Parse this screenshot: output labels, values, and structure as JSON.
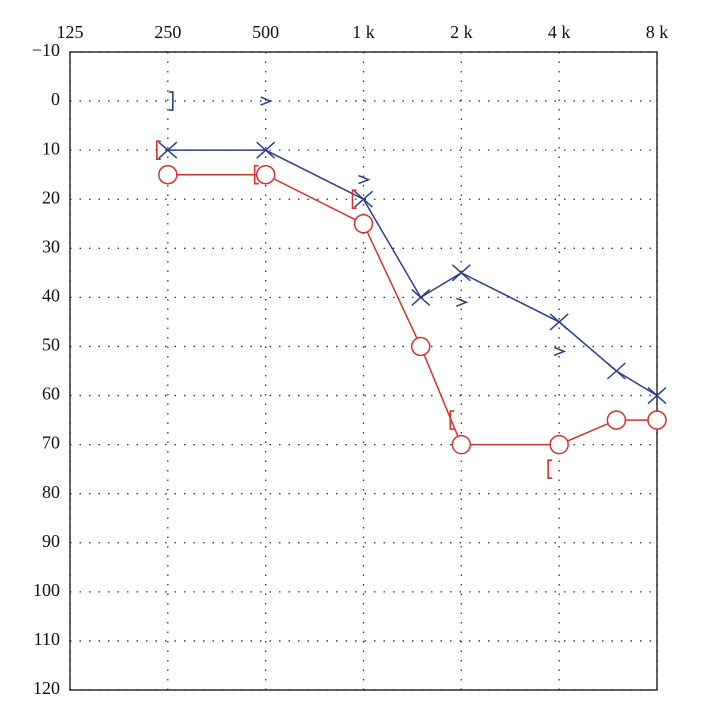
{
  "chart_data": {
    "type": "line",
    "xscale": "log",
    "y_reversed": true,
    "grid": true,
    "xlim": [
      125,
      8000
    ],
    "xticks": [
      125,
      250,
      500,
      {
        "value": 1000,
        "label": "1 k"
      },
      {
        "value": 2000,
        "label": "2 k"
      },
      {
        "value": 4000,
        "label": "4 k"
      },
      {
        "value": 8000,
        "label": "8 k"
      }
    ],
    "ylim": [
      -10,
      120
    ],
    "yticks": [
      {
        "value": -10,
        "label": "−10"
      },
      0,
      10,
      20,
      30,
      40,
      50,
      60,
      70,
      80,
      90,
      100,
      110,
      120
    ],
    "series": [
      {
        "color": "#2b3f8c",
        "marker": "cross",
        "line": true,
        "x": [
          250,
          500,
          1000,
          1500,
          2000,
          4000,
          6000,
          8000
        ],
        "values": [
          10,
          10,
          20,
          40,
          35,
          45,
          55,
          60
        ]
      },
      {
        "color": "#d0342c",
        "marker": "circle",
        "line": true,
        "x": [
          250,
          500,
          1000,
          1500,
          2000,
          4000,
          6000,
          8000
        ],
        "values": [
          15,
          15,
          25,
          50,
          70,
          70,
          65,
          65
        ]
      },
      {
        "color": "#d0342c",
        "marker": "bracket-left",
        "line": false,
        "x": [
          250,
          500,
          1000,
          2000,
          4000
        ],
        "values": [
          10,
          15,
          20,
          65,
          75
        ]
      },
      {
        "color": "#2b3f8c",
        "marker": "bracket-right",
        "line": false,
        "x": [
          250
        ],
        "values": [
          0
        ]
      },
      {
        "color": "#2b3f8c",
        "marker": "chevron",
        "line": false,
        "x": [
          500,
          1000,
          2000,
          4000
        ],
        "values": [
          0,
          16,
          41,
          51
        ]
      }
    ]
  }
}
